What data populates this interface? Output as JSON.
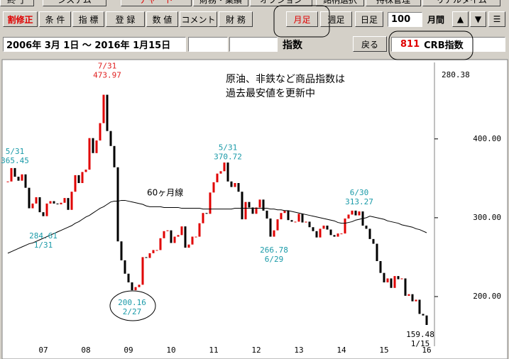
{
  "toolbar": {
    "menu": [
      "終 了",
      "システム",
      "チャート",
      "財務・業績",
      "オプション",
      "銘柄選択",
      "持株管理",
      "リアルタイム"
    ],
    "buttons": [
      "割修正",
      "条 件",
      "指 標",
      "登 録",
      "数 値",
      "コメント",
      "財 務"
    ],
    "periods": [
      "月足",
      "週足",
      "日足"
    ],
    "count": "100",
    "count_unit": "月間",
    "up": "▲",
    "down": "▼",
    "menu_icon": "☰"
  },
  "range_bar": {
    "range": "2006年 3月 1日 ～ 2016年 1月15日",
    "kind": "指数",
    "back": "戻る",
    "code": "811",
    "name": "CRB指数"
  },
  "chart_data": {
    "type": "candlestick",
    "categories": [
      null,
      null,
      null,
      null,
      null,
      null,
      null,
      null,
      null,
      null,
      "07",
      null,
      null,
      null,
      null,
      null,
      null,
      null,
      null,
      null,
      null,
      null,
      "08",
      null,
      null,
      null,
      null,
      null,
      null,
      null,
      null,
      null,
      null,
      null,
      "09",
      null,
      null,
      null,
      null,
      null,
      null,
      null,
      null,
      null,
      null,
      null,
      "10",
      null,
      null,
      null,
      null,
      null,
      null,
      null,
      null,
      null,
      null,
      null,
      "11",
      null,
      null,
      null,
      null,
      null,
      null,
      null,
      null,
      null,
      null,
      null,
      "12",
      null,
      null,
      null,
      null,
      null,
      null,
      null,
      null,
      null,
      null,
      null,
      "13",
      null,
      null,
      null,
      null,
      null,
      null,
      null,
      null,
      null,
      null,
      null,
      "14",
      null,
      null,
      null,
      null,
      null,
      null,
      null,
      null,
      null,
      null,
      null,
      "15",
      null,
      null,
      null,
      null,
      null,
      null,
      null,
      null,
      null,
      null,
      null,
      "16"
    ],
    "close": [
      346,
      363,
      352,
      347,
      355,
      338,
      312,
      318,
      326,
      307,
      302,
      318,
      321,
      318,
      317,
      319,
      325,
      310,
      333,
      354,
      344,
      358,
      361,
      401,
      382,
      398,
      420,
      456,
      410,
      391,
      364,
      270,
      246,
      229,
      218,
      208,
      212,
      215,
      250,
      249,
      255,
      259,
      259,
      274,
      283,
      284,
      268,
      276,
      278,
      289,
      262,
      266,
      276,
      276,
      293,
      306,
      305,
      332,
      345,
      356,
      359,
      370,
      346,
      339,
      344,
      333,
      298,
      320,
      313,
      305,
      313,
      323,
      309,
      299,
      276,
      284,
      298,
      306,
      309,
      297,
      295,
      295,
      305,
      294,
      295,
      288,
      283,
      275,
      286,
      290,
      285,
      278,
      276,
      280,
      280,
      299,
      304,
      309,
      303,
      308,
      290,
      286,
      273,
      267,
      245,
      230,
      218,
      223,
      211,
      226,
      222,
      223,
      201,
      203,
      194,
      196,
      178,
      176,
      164
    ],
    "up_color": "#e00000",
    "down_color": "#000000",
    "ma": {
      "name": "60ヶ月線",
      "color": "#000000",
      "values": [
        255,
        257,
        259,
        261,
        263,
        265,
        267,
        268,
        270,
        272,
        274,
        276,
        278,
        280,
        282,
        284,
        286,
        288,
        290,
        293,
        295,
        298,
        301,
        303,
        306,
        309,
        312,
        314,
        317,
        320,
        321,
        321,
        322,
        322,
        321,
        320,
        319,
        318,
        317,
        315,
        314,
        314,
        314,
        314,
        313,
        313,
        313,
        313,
        313,
        312,
        312,
        312,
        312,
        312,
        312,
        311,
        311,
        311,
        311,
        311,
        311,
        311,
        311,
        311,
        312,
        312,
        312,
        312,
        312,
        312,
        312,
        312,
        312,
        312,
        311,
        311,
        310,
        310,
        309,
        309,
        308,
        307,
        306,
        305,
        304,
        303,
        302,
        301,
        300,
        299,
        298,
        297,
        296,
        294,
        293,
        293,
        294,
        295,
        297,
        298,
        299,
        300,
        302,
        301,
        300,
        299,
        298,
        296,
        295,
        294,
        293,
        291,
        290,
        289,
        288,
        286,
        285,
        283,
        281
      ]
    },
    "ylim": [
      137,
      497
    ],
    "yticks": [
      {
        "value": 200,
        "label": "200.00"
      },
      {
        "value": 300,
        "label": "300.00"
      },
      {
        "value": 400,
        "label": "400.00"
      }
    ],
    "top_value": 280.38,
    "note": [
      "原油、非鉄など商品指数は",
      "過去最安値を更新中"
    ],
    "annotations": [
      {
        "date": "7/31",
        "value": 473.97,
        "color": "#e02020"
      },
      {
        "date": "5/31",
        "value": 365.45,
        "color": "#1a9aa8"
      },
      {
        "date": "1/31",
        "value": 284.61,
        "color": "#1a9aa8"
      },
      {
        "date": "2/27",
        "value": 200.16,
        "color": "#1a9aa8"
      },
      {
        "date": "5/31",
        "value": 370.72,
        "color": "#1a9aa8"
      },
      {
        "date": "6/29",
        "value": 266.78,
        "color": "#1a9aa8"
      },
      {
        "date": "6/30",
        "value": 313.27,
        "color": "#1a9aa8"
      },
      {
        "date": "1/15",
        "value": 159.48,
        "color": "#000000"
      }
    ]
  }
}
